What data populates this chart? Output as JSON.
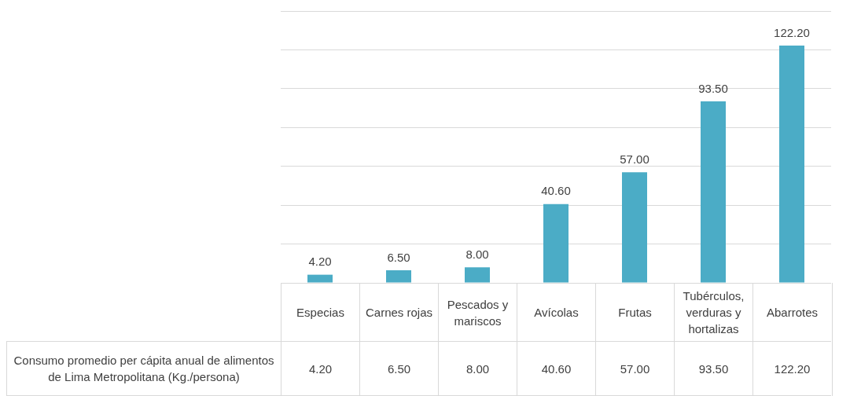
{
  "chart_data": {
    "type": "bar",
    "categories": [
      "Especias",
      "Carnes rojas",
      "Pescados y mariscos",
      "Avícolas",
      "Frutas",
      "Tubérculos, verduras y hortalizas",
      "Abarrotes"
    ],
    "series": [
      {
        "name": "Consumo promedio per cápita anual de alimentos de Lima Metropolitana (Kg./persona)",
        "color": "#4bacc6",
        "values": [
          4.2,
          6.5,
          8.0,
          40.6,
          57.0,
          93.5,
          122.2
        ],
        "value_labels": [
          "4.20",
          "6.50",
          "8.00",
          "40.60",
          "57.00",
          "93.50",
          "122.20"
        ]
      }
    ],
    "grid": "y",
    "tick_labels": "x"
  }
}
